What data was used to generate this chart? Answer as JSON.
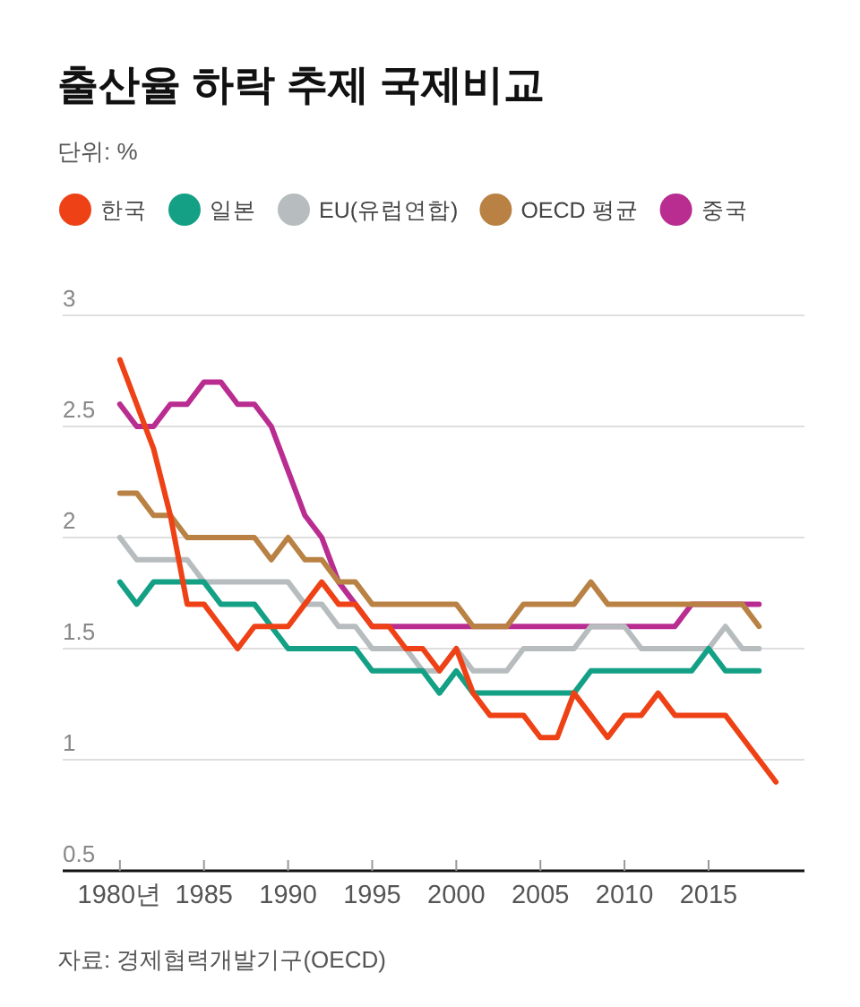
{
  "chart_data": {
    "type": "line",
    "title": "출산율 하락 추제 국제비교",
    "subtitle": "단위: %",
    "annotations": [
      "자료: 경제협력개발기구(OECD)"
    ],
    "x": [
      1980,
      1981,
      1982,
      1983,
      1984,
      1985,
      1986,
      1987,
      1988,
      1989,
      1990,
      1991,
      1992,
      1993,
      1994,
      1995,
      1996,
      1997,
      1998,
      1999,
      2000,
      2001,
      2002,
      2003,
      2004,
      2005,
      2006,
      2007,
      2008,
      2009,
      2010,
      2011,
      2012,
      2013,
      2014,
      2015,
      2016,
      2017,
      2018,
      2019
    ],
    "series": [
      {
        "name": "한국",
        "color": "#ee4216",
        "values": [
          2.8,
          2.6,
          2.4,
          2.1,
          1.7,
          1.7,
          1.6,
          1.5,
          1.6,
          1.6,
          1.6,
          1.7,
          1.8,
          1.7,
          1.7,
          1.6,
          1.6,
          1.5,
          1.5,
          1.4,
          1.5,
          1.3,
          1.2,
          1.2,
          1.2,
          1.1,
          1.1,
          1.3,
          1.2,
          1.1,
          1.2,
          1.2,
          1.3,
          1.2,
          1.2,
          1.2,
          1.2,
          1.1,
          1.0,
          0.9
        ]
      },
      {
        "name": "일본",
        "color": "#13a085",
        "values": [
          1.8,
          1.7,
          1.8,
          1.8,
          1.8,
          1.8,
          1.7,
          1.7,
          1.7,
          1.6,
          1.5,
          1.5,
          1.5,
          1.5,
          1.5,
          1.4,
          1.4,
          1.4,
          1.4,
          1.3,
          1.4,
          1.3,
          1.3,
          1.3,
          1.3,
          1.3,
          1.3,
          1.3,
          1.4,
          1.4,
          1.4,
          1.4,
          1.4,
          1.4,
          1.4,
          1.5,
          1.4,
          1.4,
          1.4,
          null
        ]
      },
      {
        "name": "EU(유럽연합)",
        "color": "#b7bcbe",
        "values": [
          2.0,
          1.9,
          1.9,
          1.9,
          1.9,
          1.8,
          1.8,
          1.8,
          1.8,
          1.8,
          1.8,
          1.7,
          1.7,
          1.6,
          1.6,
          1.5,
          1.5,
          1.5,
          1.4,
          1.4,
          1.5,
          1.4,
          1.4,
          1.4,
          1.5,
          1.5,
          1.5,
          1.5,
          1.6,
          1.6,
          1.6,
          1.5,
          1.5,
          1.5,
          1.5,
          1.5,
          1.6,
          1.5,
          1.5,
          null
        ]
      },
      {
        "name": "OECD 평균",
        "color": "#b98244",
        "values": [
          2.2,
          2.2,
          2.1,
          2.1,
          2.0,
          2.0,
          2.0,
          2.0,
          2.0,
          1.9,
          2.0,
          1.9,
          1.9,
          1.8,
          1.8,
          1.7,
          1.7,
          1.7,
          1.7,
          1.7,
          1.7,
          1.6,
          1.6,
          1.6,
          1.7,
          1.7,
          1.7,
          1.7,
          1.8,
          1.7,
          1.7,
          1.7,
          1.7,
          1.7,
          1.7,
          1.7,
          1.7,
          1.7,
          1.6,
          null
        ]
      },
      {
        "name": "중국",
        "color": "#b92d91",
        "values": [
          2.6,
          2.5,
          2.5,
          2.6,
          2.6,
          2.7,
          2.7,
          2.6,
          2.6,
          2.5,
          2.3,
          2.1,
          2.0,
          1.8,
          1.7,
          1.6,
          1.6,
          1.6,
          1.6,
          1.6,
          1.6,
          1.6,
          1.6,
          1.6,
          1.6,
          1.6,
          1.6,
          1.6,
          1.6,
          1.6,
          1.6,
          1.6,
          1.6,
          1.6,
          1.7,
          1.7,
          1.7,
          1.7,
          1.7,
          null
        ]
      }
    ],
    "xlim": [
      1976.6,
      2020.7
    ],
    "xticks": [
      {
        "value": 1980,
        "label": "1980년"
      },
      1985,
      1990,
      1995,
      2000,
      2005,
      2010,
      2015
    ],
    "ylim": [
      0.5,
      3
    ],
    "yticks": [
      0.5,
      1,
      1.5,
      2,
      2.5,
      3
    ],
    "grid": "y",
    "legend": "top"
  }
}
